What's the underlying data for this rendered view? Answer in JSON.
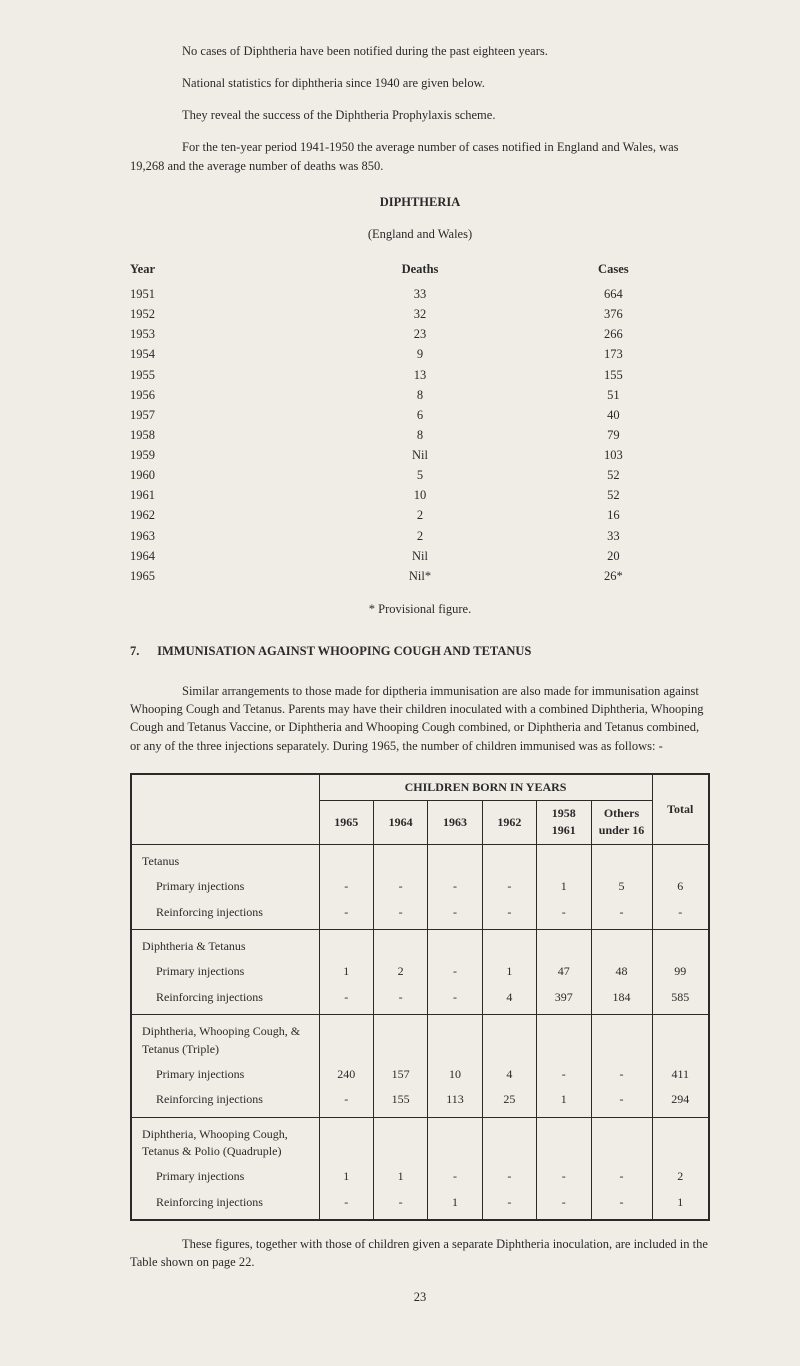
{
  "intro": {
    "p1": "No cases of Diphtheria have been notified during the past eighteen years.",
    "p2": "National statistics for diphtheria since 1940 are given below.",
    "p3": "They reveal the success of the Diphtheria Prophylaxis scheme.",
    "p4": "For the ten-year period 1941-1950 the average number of cases notified in England and Wales, was 19,268 and the average number of deaths was 850."
  },
  "diphtheria_table": {
    "title": "DIPHTHERIA",
    "subtitle": "(England and Wales)",
    "headers": {
      "year": "Year",
      "deaths": "Deaths",
      "cases": "Cases"
    },
    "rows": [
      {
        "year": "1951",
        "deaths": "33",
        "cases": "664"
      },
      {
        "year": "1952",
        "deaths": "32",
        "cases": "376"
      },
      {
        "year": "1953",
        "deaths": "23",
        "cases": "266"
      },
      {
        "year": "1954",
        "deaths": "9",
        "cases": "173"
      },
      {
        "year": "1955",
        "deaths": "13",
        "cases": "155"
      },
      {
        "year": "1956",
        "deaths": "8",
        "cases": "51"
      },
      {
        "year": "1957",
        "deaths": "6",
        "cases": "40"
      },
      {
        "year": "1958",
        "deaths": "8",
        "cases": "79"
      },
      {
        "year": "1959",
        "deaths": "Nil",
        "cases": "103"
      },
      {
        "year": "1960",
        "deaths": "5",
        "cases": "52"
      },
      {
        "year": "1961",
        "deaths": "10",
        "cases": "52"
      },
      {
        "year": "1962",
        "deaths": "2",
        "cases": "16"
      },
      {
        "year": "1963",
        "deaths": "2",
        "cases": "33"
      },
      {
        "year": "1964",
        "deaths": "Nil",
        "cases": "20"
      },
      {
        "year": "1965",
        "deaths": "Nil*",
        "cases": "26*"
      }
    ],
    "footnote": "* Provisional figure."
  },
  "section7": {
    "number": "7.",
    "title": "IMMUNISATION AGAINST WHOOPING COUGH AND TETANUS",
    "para": "Similar arrangements to those made for diptheria immunisation are also made for immunisation against Whooping Cough and Tetanus. Parents may have their children inoculated with a combined Diphtheria, Whooping Cough and Tetanus Vaccine, or Diphtheria and Whooping Cough combined, or Diphtheria and Tetanus combined, or any of the three injections separately. During 1965, the number of children immunised was as follows: -"
  },
  "children_table": {
    "super_header": "CHILDREN BORN IN YEARS",
    "headers": {
      "y1965": "1965",
      "y1964": "1964",
      "y1963": "1963",
      "y1962": "1962",
      "y1958": "1958 1961",
      "others": "Others under 16",
      "total": "Total"
    },
    "groups": [
      {
        "title": "Tetanus",
        "rows": [
          {
            "label": "Primary injections",
            "c": [
              "-",
              "-",
              "-",
              "-",
              "1",
              "5",
              "6"
            ]
          },
          {
            "label": "Reinforcing injections",
            "c": [
              "-",
              "-",
              "-",
              "-",
              "-",
              "-",
              "-"
            ]
          }
        ]
      },
      {
        "title": "Diphtheria & Tetanus",
        "rows": [
          {
            "label": "Primary injections",
            "c": [
              "1",
              "2",
              "-",
              "1",
              "47",
              "48",
              "99"
            ]
          },
          {
            "label": "Reinforcing injections",
            "c": [
              "-",
              "-",
              "-",
              "4",
              "397",
              "184",
              "585"
            ]
          }
        ]
      },
      {
        "title": "Diphtheria, Whooping Cough, & Tetanus (Triple)",
        "rows": [
          {
            "label": "Primary injections",
            "c": [
              "240",
              "157",
              "10",
              "4",
              "-",
              "-",
              "411"
            ]
          },
          {
            "label": "Reinforcing injections",
            "c": [
              "-",
              "155",
              "113",
              "25",
              "1",
              "-",
              "294"
            ]
          }
        ]
      },
      {
        "title": "Diphtheria, Whooping Cough, Tetanus & Polio (Quadruple)",
        "rows": [
          {
            "label": "Primary injections",
            "c": [
              "1",
              "1",
              "-",
              "-",
              "-",
              "-",
              "2"
            ]
          },
          {
            "label": "Reinforcing injections",
            "c": [
              "-",
              "-",
              "1",
              "-",
              "-",
              "-",
              "1"
            ]
          }
        ]
      }
    ]
  },
  "closing": {
    "p1": "These figures, together with those of children given a separate Diphtheria inoculation, are included in the Table shown on page 22.",
    "pagenum": "23"
  }
}
